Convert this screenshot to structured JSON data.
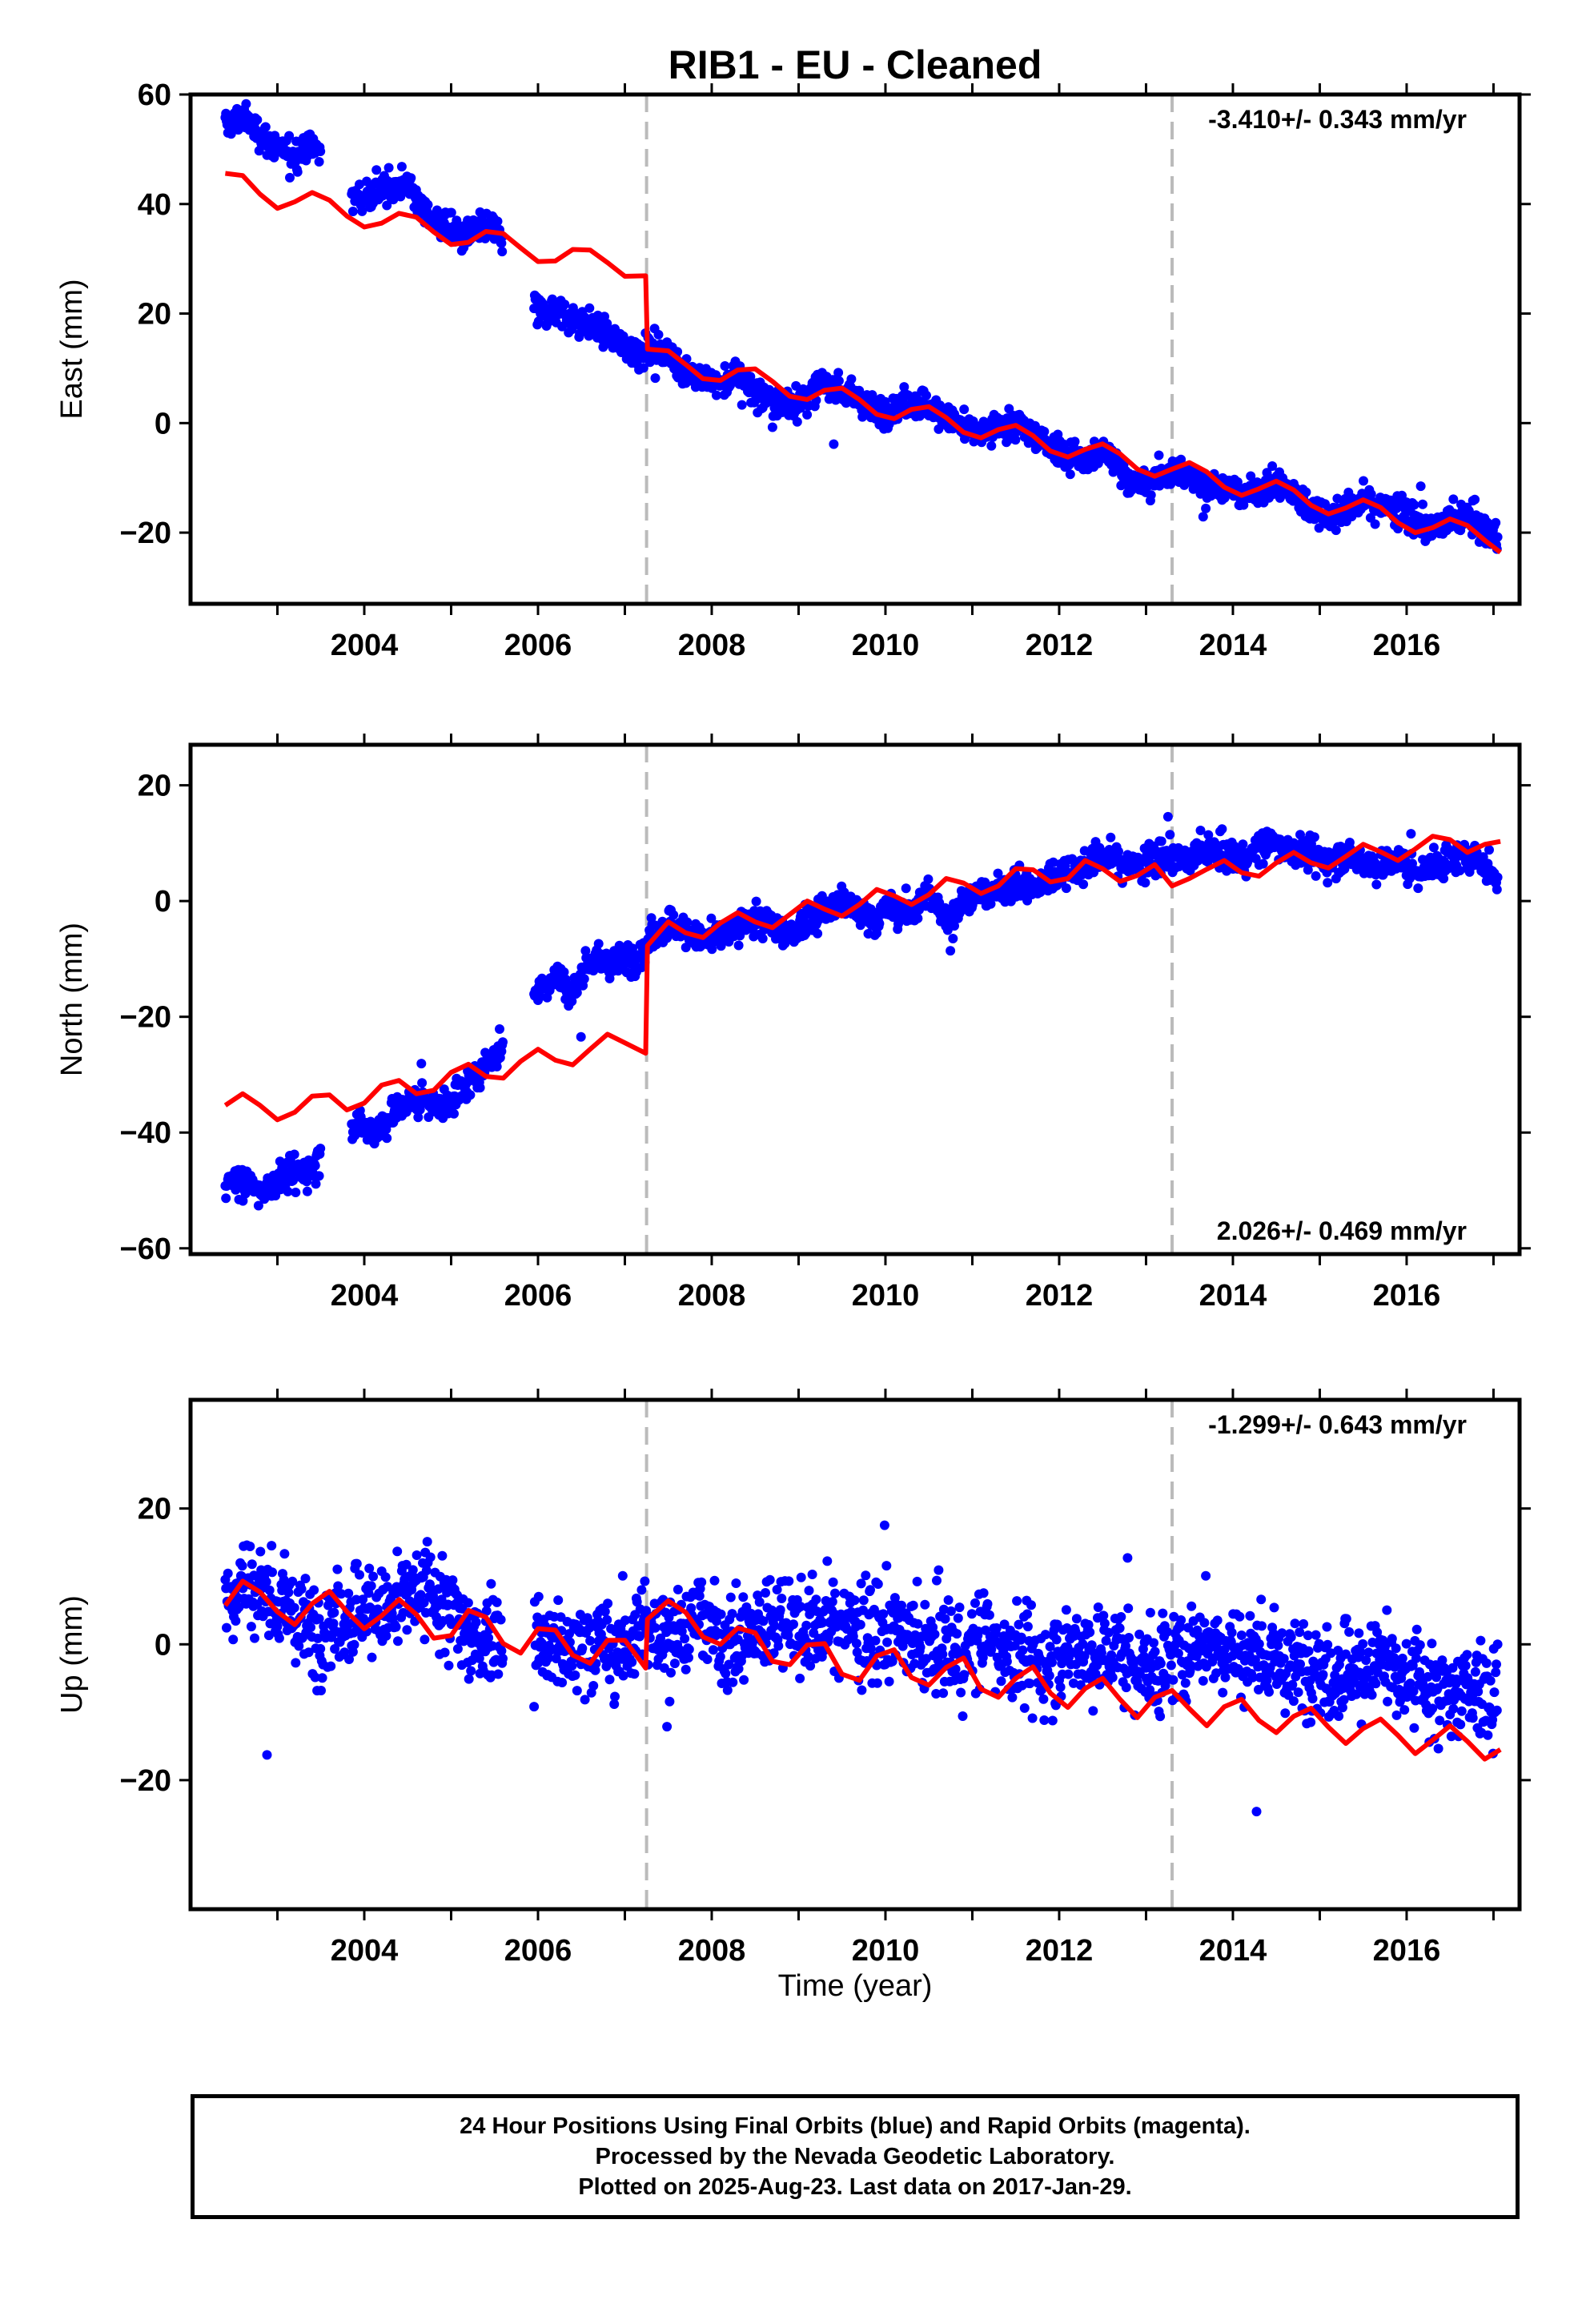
{
  "title": "RIB1  - EU - Cleaned",
  "xlabel": "Time (year)",
  "footer": {
    "line1": "24 Hour Positions Using Final Orbits (blue) and Rapid Orbits (magenta).",
    "line2": "Processed by the Nevada Geodetic Laboratory.",
    "line3": "Plotted on 2025-Aug-23. Last data on 2017-Jan-29."
  },
  "colors": {
    "data": "#0000ff",
    "model": "#ff0000",
    "steps": "#bbbbbb",
    "axes": "#000000"
  },
  "chart_data": [
    {
      "type": "scatter",
      "name": "East",
      "ylabel": "East (mm)",
      "rate": "-3.410+/- 0.343 mm/yr",
      "rate_position": "top-right",
      "xlim": [
        2002.0,
        2017.3
      ],
      "ylim": [
        -33,
        60
      ],
      "yticks": [
        -20,
        0,
        20,
        40,
        60
      ],
      "xticks": [
        2004,
        2006,
        2008,
        2010,
        2012,
        2014,
        2016
      ],
      "steps": [
        2007.25,
        2013.3
      ],
      "data_range": [
        2002.4,
        2017.08
      ],
      "series": [
        {
          "name": "",
          "x": [
            2002.4,
            2002.6,
            2002.8,
            2003.0,
            2003.2,
            2003.4,
            2003.9,
            2004.1,
            2004.3,
            2004.5,
            2004.7,
            2004.9,
            2005.1,
            2005.3,
            2005.5,
            2006.0,
            2006.2,
            2006.4,
            2006.6,
            2006.8,
            2007.0,
            2007.2,
            2007.3,
            2007.5,
            2007.7,
            2007.9,
            2008.1,
            2008.3,
            2008.5,
            2008.7,
            2008.9,
            2009.1,
            2009.3,
            2009.5,
            2009.7,
            2009.9,
            2010.1,
            2010.3,
            2010.5,
            2010.7,
            2010.9,
            2011.1,
            2011.3,
            2011.5,
            2011.7,
            2011.9,
            2012.1,
            2012.3,
            2012.5,
            2012.7,
            2012.9,
            2013.1,
            2013.3,
            2013.5,
            2013.7,
            2013.9,
            2014.1,
            2014.3,
            2014.5,
            2014.7,
            2014.9,
            2015.1,
            2015.3,
            2015.5,
            2015.7,
            2015.9,
            2016.1,
            2016.3,
            2016.5,
            2016.7,
            2016.9,
            2017.05
          ],
          "y": [
            54,
            56,
            53,
            50,
            49,
            51,
            41,
            42,
            43,
            44,
            38,
            36,
            34,
            35,
            36,
            20,
            21,
            19,
            18,
            16,
            14,
            13,
            14,
            12,
            10,
            8,
            7,
            9,
            6,
            4,
            3,
            5,
            7,
            6,
            4,
            2,
            3,
            4,
            3,
            1,
            -1,
            -2,
            -1,
            0,
            -2,
            -4,
            -6,
            -7,
            -5,
            -8,
            -12,
            -10,
            -9,
            -10,
            -11,
            -12,
            -13,
            -12,
            -11,
            -13,
            -16,
            -17,
            -16,
            -14,
            -15,
            -16,
            -18,
            -19,
            -18,
            -17,
            -20,
            -21
          ]
        },
        {
          "name": "",
          "x": [
            2002.4,
            2002.6,
            2002.8,
            2003.0,
            2003.2,
            2003.4,
            2003.6,
            2003.8,
            2004.0,
            2004.2,
            2004.4,
            2004.6,
            2004.8,
            2005.0,
            2005.2,
            2005.4,
            2005.6,
            2005.8,
            2006.0,
            2006.2,
            2006.4,
            2006.6,
            2006.8,
            2007.0,
            2007.24,
            2007.26,
            2007.5,
            2007.7,
            2007.9,
            2008.1,
            2008.3,
            2008.5,
            2008.7,
            2008.9,
            2009.1,
            2009.3,
            2009.5,
            2009.7,
            2009.9,
            2010.1,
            2010.3,
            2010.5,
            2010.7,
            2010.9,
            2011.1,
            2011.3,
            2011.5,
            2011.7,
            2011.9,
            2012.1,
            2012.3,
            2012.5,
            2012.7,
            2012.9,
            2013.1,
            2013.3,
            2013.5,
            2013.7,
            2013.9,
            2014.1,
            2014.3,
            2014.5,
            2014.7,
            2014.9,
            2015.1,
            2015.3,
            2015.5,
            2015.7,
            2015.9,
            2016.1,
            2016.3,
            2016.5,
            2016.7,
            2016.9,
            2017.08
          ],
          "y": [
            45.6,
            45.2,
            41.8,
            39.2,
            40.4,
            42.1,
            40.7,
            37.8,
            35.8,
            36.5,
            38.3,
            37.6,
            34.9,
            32.6,
            33.0,
            35.0,
            34.6,
            32.0,
            29.5,
            29.6,
            31.7,
            31.6,
            29.3,
            26.8,
            26.9,
            13.5,
            13.2,
            10.7,
            8.1,
            7.8,
            9.7,
            9.9,
            7.6,
            4.9,
            4.3,
            6.0,
            6.4,
            4.3,
            1.6,
            0.8,
            2.5,
            3.0,
            1.0,
            -1.7,
            -2.7,
            -1.2,
            -0.4,
            -2.3,
            -5.1,
            -6.2,
            -4.8,
            -3.8,
            -5.6,
            -8.4,
            -9.7,
            -8.4,
            -7.2,
            -8.9,
            -11.7,
            -13.2,
            -12.0,
            -10.6,
            -12.2,
            -15.0,
            -16.6,
            -15.5,
            -14.0,
            -15.4,
            -18.2,
            -20.0,
            -19.1,
            -17.5,
            -18.7,
            -21.4,
            -23.6
          ]
        }
      ]
    },
    {
      "type": "scatter",
      "name": "North",
      "ylabel": "North (mm)",
      "rate": "2.026+/- 0.469 mm/yr",
      "rate_position": "bottom-right",
      "xlim": [
        2002.0,
        2017.3
      ],
      "ylim": [
        -61,
        27
      ],
      "yticks": [
        -60,
        -40,
        -20,
        0,
        20
      ],
      "xticks": [
        2004,
        2006,
        2008,
        2010,
        2012,
        2014,
        2016
      ],
      "steps": [
        2007.25,
        2013.3
      ],
      "data_range": [
        2002.4,
        2017.08
      ],
      "series": [
        {
          "name": "",
          "x": [
            2002.4,
            2002.6,
            2002.8,
            2003.0,
            2003.2,
            2003.4,
            2003.9,
            2004.1,
            2004.3,
            2004.5,
            2004.7,
            2004.9,
            2005.3,
            2005.5,
            2006.0,
            2006.2,
            2006.4,
            2006.6,
            2006.8,
            2007.0,
            2007.2,
            2007.3,
            2007.5,
            2007.7,
            2007.9,
            2008.1,
            2008.3,
            2008.5,
            2008.7,
            2008.9,
            2009.1,
            2009.3,
            2009.5,
            2009.7,
            2009.9,
            2010.1,
            2010.3,
            2010.5,
            2010.7,
            2010.9,
            2011.1,
            2011.3,
            2011.5,
            2011.7,
            2011.9,
            2012.1,
            2012.3,
            2012.5,
            2012.7,
            2012.9,
            2013.1,
            2013.3,
            2013.5,
            2013.7,
            2013.9,
            2014.1,
            2014.3,
            2014.5,
            2014.7,
            2014.9,
            2015.1,
            2015.3,
            2015.5,
            2015.7,
            2015.9,
            2016.1,
            2016.3,
            2016.5,
            2016.7,
            2016.9,
            2017.05
          ],
          "y": [
            -48,
            -49,
            -50,
            -48,
            -47,
            -46,
            -38,
            -40,
            -37,
            -35,
            -34,
            -36,
            -30,
            -27,
            -15,
            -13,
            -16,
            -10,
            -11,
            -10,
            -9,
            -6,
            -4,
            -5,
            -7,
            -6,
            -5,
            -3,
            -4,
            -6,
            -3,
            -2,
            0,
            -2,
            -3,
            -1,
            -2,
            1,
            -3,
            0,
            1,
            2,
            3,
            2,
            4,
            5,
            6,
            8,
            7,
            6,
            7,
            8,
            7,
            9,
            8,
            7,
            9,
            10,
            9,
            8,
            7,
            8,
            7,
            6,
            7,
            5,
            6,
            7,
            8,
            6,
            4
          ]
        },
        {
          "name": "",
          "x": [
            2002.4,
            2002.6,
            2002.8,
            2003.0,
            2003.2,
            2003.4,
            2003.6,
            2003.8,
            2004.0,
            2004.2,
            2004.4,
            2004.6,
            2004.8,
            2005.0,
            2005.2,
            2005.4,
            2005.6,
            2005.8,
            2006.0,
            2006.2,
            2006.4,
            2006.6,
            2006.8,
            2007.0,
            2007.24,
            2007.26,
            2007.5,
            2007.7,
            2007.9,
            2008.1,
            2008.3,
            2008.5,
            2008.7,
            2008.9,
            2009.1,
            2009.3,
            2009.5,
            2009.7,
            2009.9,
            2010.1,
            2010.3,
            2010.5,
            2010.7,
            2010.9,
            2011.1,
            2011.3,
            2011.5,
            2011.7,
            2011.9,
            2012.1,
            2012.3,
            2012.5,
            2012.7,
            2012.9,
            2013.1,
            2013.3,
            2013.5,
            2013.7,
            2013.9,
            2014.1,
            2014.3,
            2014.5,
            2014.7,
            2014.9,
            2015.1,
            2015.3,
            2015.5,
            2015.7,
            2015.9,
            2016.1,
            2016.3,
            2016.5,
            2016.7,
            2016.9,
            2017.08
          ],
          "y": [
            -35.3,
            -33.3,
            -35.3,
            -37.8,
            -36.5,
            -33.7,
            -33.5,
            -36.1,
            -34.9,
            -31.8,
            -31.0,
            -33.3,
            -32.7,
            -29.6,
            -28.2,
            -30.3,
            -30.6,
            -27.7,
            -25.6,
            -27.5,
            -28.3,
            -25.6,
            -23.0,
            -24.5,
            -26.3,
            -7.7,
            -3.6,
            -5.5,
            -6.3,
            -3.8,
            -2.0,
            -3.6,
            -4.6,
            -2.3,
            0.0,
            -1.4,
            -2.6,
            -0.6,
            2.0,
            0.9,
            -0.6,
            1.1,
            3.9,
            3.1,
            1.3,
            2.6,
            5.6,
            5.4,
            3.3,
            3.9,
            7.0,
            5.6,
            3.4,
            4.4,
            6.3,
            2.6,
            3.9,
            5.5,
            7.0,
            4.9,
            4.3,
            6.6,
            8.4,
            6.6,
            5.7,
            7.7,
            9.8,
            8.5,
            7.0,
            9.0,
            11.2,
            10.6,
            8.4,
            9.8,
            10.3
          ]
        }
      ]
    },
    {
      "type": "scatter",
      "name": "Up",
      "ylabel": "Up (mm)",
      "rate": "-1.299+/- 0.643 mm/yr",
      "rate_position": "top-right",
      "xlim": [
        2002.0,
        2017.3
      ],
      "ylim": [
        -39,
        36
      ],
      "yticks": [
        -20,
        0,
        20
      ],
      "xticks": [
        2004,
        2006,
        2008,
        2010,
        2012,
        2014,
        2016
      ],
      "steps": [
        2007.25,
        2013.3
      ],
      "data_range": [
        2002.4,
        2017.08
      ],
      "series": [
        {
          "name": "",
          "x": [
            2002.4,
            2002.6,
            2002.8,
            2003.0,
            2003.2,
            2003.4,
            2003.9,
            2004.1,
            2004.3,
            2004.5,
            2004.7,
            2004.9,
            2005.3,
            2005.5,
            2006.0,
            2006.2,
            2006.4,
            2006.6,
            2006.8,
            2007.0,
            2007.2,
            2007.3,
            2007.5,
            2007.7,
            2007.9,
            2008.1,
            2008.3,
            2008.5,
            2008.7,
            2008.9,
            2009.1,
            2009.3,
            2009.5,
            2009.7,
            2009.9,
            2010.1,
            2010.3,
            2010.5,
            2010.7,
            2010.9,
            2011.1,
            2011.3,
            2011.5,
            2011.7,
            2011.9,
            2012.1,
            2012.3,
            2012.5,
            2012.7,
            2012.9,
            2013.1,
            2013.3,
            2013.5,
            2013.7,
            2013.9,
            2014.1,
            2014.3,
            2014.5,
            2014.7,
            2014.9,
            2015.1,
            2015.3,
            2015.5,
            2015.7,
            2015.9,
            2016.1,
            2016.3,
            2016.5,
            2016.7,
            2016.9,
            2017.05
          ],
          "y": [
            7,
            9,
            8,
            6,
            4,
            2,
            5,
            6,
            4,
            7,
            8,
            6,
            0,
            2,
            -1,
            0,
            -2,
            1,
            -1,
            0,
            2,
            1,
            3,
            2,
            4,
            1,
            0,
            2,
            3,
            4,
            2,
            3,
            4,
            2,
            1,
            3,
            0,
            -1,
            0,
            -2,
            1,
            0,
            -1,
            -3,
            -2,
            -1,
            0,
            -2,
            -1,
            -3,
            -4,
            -2,
            -1,
            1,
            0,
            -2,
            -1,
            -3,
            -4,
            -2,
            -5,
            -3,
            -4,
            -2,
            -6,
            -5,
            -7,
            -8,
            -6,
            -7,
            -8
          ]
        },
        {
          "name": "",
          "x": [
            2002.4,
            2002.6,
            2002.8,
            2003.0,
            2003.2,
            2003.4,
            2003.6,
            2003.8,
            2004.0,
            2004.2,
            2004.4,
            2004.6,
            2004.8,
            2005.0,
            2005.2,
            2005.4,
            2005.6,
            2005.8,
            2006.0,
            2006.2,
            2006.4,
            2006.6,
            2006.8,
            2007.0,
            2007.24,
            2007.26,
            2007.5,
            2007.7,
            2007.9,
            2008.1,
            2008.3,
            2008.5,
            2008.7,
            2008.9,
            2009.1,
            2009.3,
            2009.5,
            2009.7,
            2009.9,
            2010.1,
            2010.3,
            2010.5,
            2010.7,
            2010.9,
            2011.1,
            2011.3,
            2011.5,
            2011.7,
            2011.9,
            2012.1,
            2012.3,
            2012.5,
            2012.7,
            2012.9,
            2013.1,
            2013.3,
            2013.5,
            2013.7,
            2013.9,
            2014.1,
            2014.3,
            2014.5,
            2014.7,
            2014.9,
            2015.1,
            2015.3,
            2015.5,
            2015.7,
            2015.9,
            2016.1,
            2016.3,
            2016.5,
            2016.7,
            2016.9,
            2017.08
          ],
          "y": [
            5.7,
            9.3,
            7.7,
            4.8,
            2.9,
            6.0,
            7.8,
            4.8,
            2.3,
            4.2,
            6.6,
            4.4,
            0.9,
            1.3,
            5.0,
            4.0,
            0.1,
            -1.3,
            2.3,
            2.1,
            -1.6,
            -2.8,
            0.6,
            0.6,
            -3.5,
            3.7,
            6.4,
            4.7,
            1.1,
            0.0,
            2.4,
            1.7,
            -2.5,
            -3.0,
            -0.1,
            0.1,
            -4.4,
            -5.3,
            -1.7,
            -0.8,
            -4.9,
            -6.0,
            -3.4,
            -2.0,
            -6.6,
            -7.8,
            -5.0,
            -3.3,
            -7.2,
            -9.3,
            -6.5,
            -5.0,
            -8.1,
            -10.8,
            -7.8,
            -6.8,
            -9.5,
            -12.0,
            -9.2,
            -8.1,
            -11.2,
            -13.0,
            -10.6,
            -9.4,
            -12.2,
            -14.6,
            -12.4,
            -11.0,
            -13.4,
            -16.1,
            -14.1,
            -12.0,
            -14.3,
            -16.9,
            -15.5
          ]
        }
      ]
    }
  ]
}
